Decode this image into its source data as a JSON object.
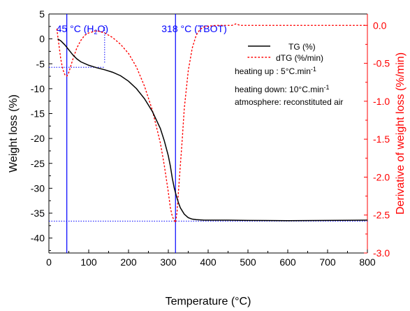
{
  "chart_data": {
    "type": "line",
    "xlabel": "Temperature (°C)",
    "ylabel_left": "Weight loss (%)",
    "ylabel_right": "Derivative of weight loss (%/min)",
    "xlim": [
      0,
      800
    ],
    "ylim_left": [
      -43,
      5
    ],
    "ylim_right": [
      -3.0,
      0.15
    ],
    "x_ticks": [
      0,
      100,
      200,
      300,
      400,
      500,
      600,
      700,
      800
    ],
    "y_left_ticks": [
      5,
      0,
      -5,
      -10,
      -15,
      -20,
      -25,
      -30,
      -35,
      -40
    ],
    "y_right_ticks": [
      0.0,
      -0.5,
      -1.0,
      -1.5,
      -2.0,
      -2.5,
      -3.0
    ],
    "x_tick_labels": [
      "0",
      "100",
      "200",
      "300",
      "400",
      "500",
      "600",
      "700",
      "800"
    ],
    "y_left_tick_labels": [
      "5",
      "0",
      "-5",
      "-10",
      "-15",
      "-20",
      "-25",
      "-30",
      "-35",
      "-40"
    ],
    "y_right_tick_labels": [
      "0.0",
      "-0.5",
      "-1.0",
      "-1.5",
      "-2.0",
      "-2.5",
      "-3.0"
    ],
    "colors": {
      "tg": "#000000",
      "dtg": "#ff0000",
      "marker": "#0000ff",
      "right_axis": "#ff0000"
    },
    "series": [
      {
        "name": "TG (%)",
        "axis": "left",
        "style": "solid",
        "x": [
          22,
          30,
          40,
          50,
          60,
          70,
          80,
          100,
          120,
          140,
          160,
          180,
          200,
          220,
          240,
          260,
          280,
          290,
          300,
          305,
          310,
          315,
          320,
          325,
          330,
          340,
          350,
          360,
          370,
          380,
          390,
          400,
          450,
          500,
          600,
          700,
          800
        ],
        "y": [
          0,
          -0.4,
          -1.2,
          -2.2,
          -3.2,
          -4.0,
          -4.6,
          -5.3,
          -5.8,
          -6.2,
          -6.7,
          -7.4,
          -8.5,
          -10.0,
          -12.0,
          -14.6,
          -18.0,
          -20.5,
          -23.5,
          -25.5,
          -28.0,
          -30.0,
          -31.5,
          -32.8,
          -33.9,
          -35.2,
          -35.9,
          -36.2,
          -36.3,
          -36.35,
          -36.4,
          -36.4,
          -36.4,
          -36.45,
          -36.5,
          -36.45,
          -36.4
        ]
      },
      {
        "name": "dTG (%/min)",
        "axis": "right",
        "style": "dotted",
        "x": [
          20,
          25,
          30,
          35,
          40,
          45,
          50,
          60,
          70,
          80,
          90,
          100,
          120,
          140,
          160,
          180,
          200,
          220,
          240,
          260,
          280,
          290,
          300,
          305,
          310,
          315,
          318,
          322,
          328,
          335,
          340,
          350,
          360,
          370,
          380,
          390,
          400,
          420,
          450,
          460,
          470,
          480,
          500,
          600,
          700,
          800
        ],
        "y": [
          -0.05,
          -0.25,
          -0.45,
          -0.58,
          -0.65,
          -0.67,
          -0.62,
          -0.45,
          -0.3,
          -0.2,
          -0.13,
          -0.1,
          -0.07,
          -0.1,
          -0.16,
          -0.25,
          -0.37,
          -0.55,
          -0.8,
          -1.12,
          -1.55,
          -1.85,
          -2.2,
          -2.4,
          -2.52,
          -2.57,
          -2.6,
          -2.45,
          -2.0,
          -1.5,
          -1.1,
          -0.6,
          -0.3,
          -0.13,
          -0.05,
          -0.02,
          -0.01,
          0.0,
          0.0,
          0.0,
          0.02,
          0.0,
          0.0,
          0.0,
          0.0,
          0.0
        ]
      }
    ],
    "annotations": [
      {
        "label_parts": [
          "45 °C (H",
          "2",
          "O)"
        ],
        "x": 45
      },
      {
        "label": "318 °C (TBOT)",
        "x": 318
      }
    ],
    "guides": [
      {
        "y_left": -5.7,
        "x_from": 0,
        "x_to": 140
      },
      {
        "x": 140,
        "y_right_from": -0.49,
        "y_right_to": 0.0
      },
      {
        "y_left": -36.6,
        "x_from": 0,
        "x_to": 800
      }
    ],
    "legend": {
      "placement": "top-right"
    },
    "notes": [
      {
        "parts": [
          "heating up : 5°C.min",
          "-1"
        ]
      },
      {
        "parts": [
          "heating down: 10°C.min",
          "-1"
        ]
      },
      {
        "parts": [
          "atmosphere: reconstituted air"
        ]
      }
    ]
  }
}
